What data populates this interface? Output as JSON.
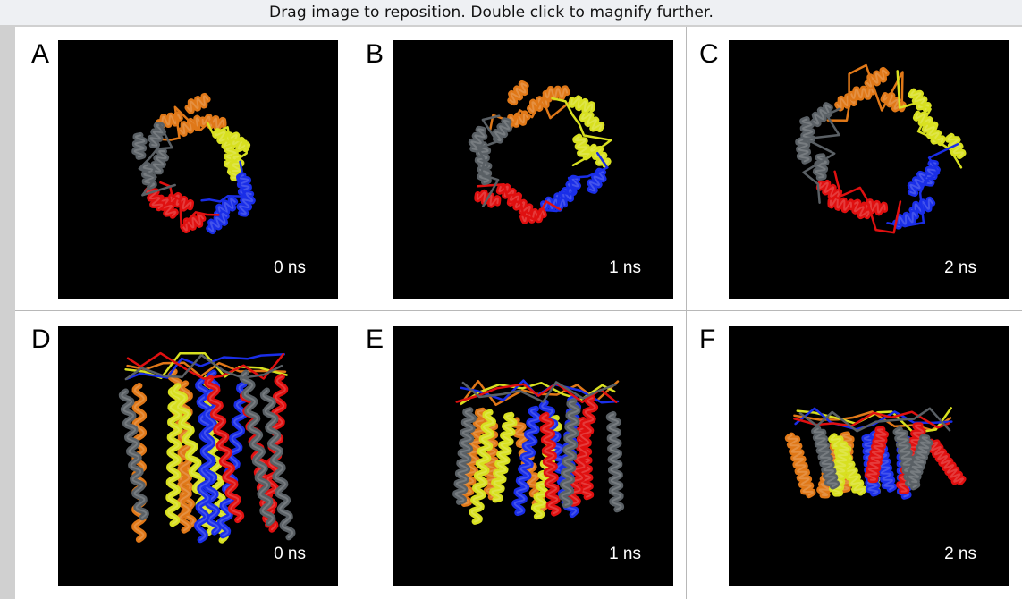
{
  "viewer": {
    "hint": "Drag image to reposition. Double click to magnify further."
  },
  "figure": {
    "panels": [
      {
        "letter": "A",
        "time": "0 ns",
        "view": "top"
      },
      {
        "letter": "B",
        "time": "1 ns",
        "view": "top"
      },
      {
        "letter": "C",
        "time": "2 ns",
        "view": "top"
      },
      {
        "letter": "D",
        "time": "0 ns",
        "view": "side"
      },
      {
        "letter": "E",
        "time": "1 ns",
        "view": "side"
      },
      {
        "letter": "F",
        "time": "2 ns",
        "view": "side"
      }
    ],
    "colors": {
      "background": "#000000",
      "chain_red": "#e01010",
      "chain_blue": "#1a2ee8",
      "chain_yellow": "#d8e020",
      "chain_orange": "#e07818",
      "chain_gray": "#5a6065"
    }
  }
}
